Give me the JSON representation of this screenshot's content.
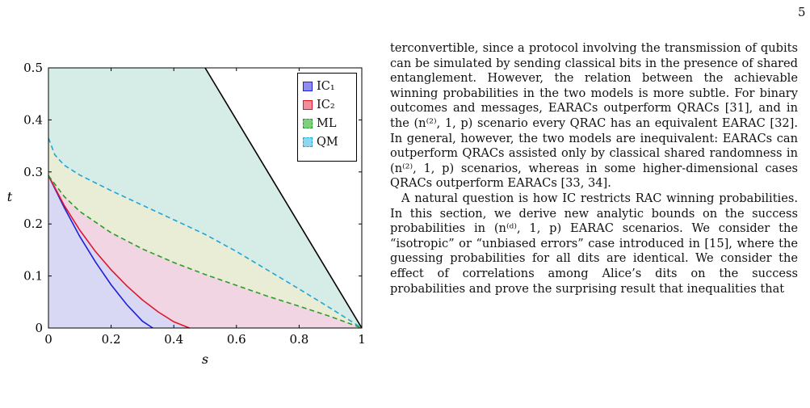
{
  "page_number": "5",
  "colors": {
    "ic1": "#1f1fd6",
    "ic2": "#e0162b",
    "ml": "#2a9d2a",
    "qm": "#1ea6d8",
    "qm_fill": "#d6ece6",
    "ml_fill": "#e9edd5",
    "ic2_fill": "#f2d5e2",
    "ic1_fill": "#d9d8f4"
  },
  "chart_data": {
    "type": "area",
    "xlabel": "s",
    "ylabel": "t",
    "xlim": [
      0,
      1
    ],
    "ylim": [
      0,
      0.5
    ],
    "x_ticks": [
      "0",
      "0.2",
      "0.4",
      "0.6",
      "0.8",
      "1"
    ],
    "y_ticks": [
      "0",
      "0.1",
      "0.2",
      "0.3",
      "0.4",
      "0.5"
    ],
    "legend": "top-right",
    "series": [
      {
        "name": "IC₁",
        "style": "solid",
        "color": "#1f1fd6",
        "x": [
          0,
          0.05,
          0.1,
          0.15,
          0.2,
          0.25,
          0.3,
          0.333
        ],
        "y": [
          0.293,
          0.232,
          0.176,
          0.127,
          0.083,
          0.045,
          0.013,
          0
        ]
      },
      {
        "name": "IC₂",
        "style": "solid",
        "color": "#e0162b",
        "x": [
          0,
          0.05,
          0.1,
          0.15,
          0.2,
          0.25,
          0.3,
          0.35,
          0.4,
          0.45
        ],
        "y": [
          0.293,
          0.236,
          0.188,
          0.147,
          0.112,
          0.081,
          0.054,
          0.031,
          0.012,
          0
        ]
      },
      {
        "name": "ML",
        "style": "dashed",
        "color": "#2a9d2a",
        "x": [
          0,
          0.05,
          0.1,
          0.2,
          0.3,
          0.4,
          0.5,
          0.6,
          0.7,
          0.8,
          0.9,
          1.0
        ],
        "y": [
          0.293,
          0.253,
          0.224,
          0.183,
          0.152,
          0.126,
          0.103,
          0.082,
          0.061,
          0.042,
          0.022,
          0
        ]
      },
      {
        "name": "QM",
        "style": "dashed",
        "color": "#1ea6d8",
        "x": [
          0,
          0.02,
          0.05,
          0.1,
          0.2,
          0.3,
          0.4,
          0.5,
          0.6,
          0.7,
          0.8,
          0.9,
          1.0
        ],
        "y": [
          0.365,
          0.333,
          0.313,
          0.294,
          0.264,
          0.236,
          0.208,
          0.18,
          0.147,
          0.111,
          0.075,
          0.038,
          0
        ]
      },
      {
        "name": "boundary",
        "style": "solid",
        "color": "#000000",
        "x": [
          0.5,
          1.0
        ],
        "y": [
          0.5,
          0
        ]
      }
    ]
  },
  "text": {
    "para1": "terconvertible, since a protocol involving the transmission of qubits can be simulated by sending classical bits in the presence of shared entanglement. However, the relation between the achievable winning probabilities in the two models is more subtle. For binary outcomes and messages, EARACs outperform QRACs [31], and in the (n⁽²⁾, 1, p) scenario every QRAC has an equivalent EARAC [32]. In general, however, the two models are inequivalent: EARACs can outperform QRACs assisted only by classical shared randomness in (n⁽²⁾, 1, p) scenarios, whereas in some higher-dimensional cases QRACs outperform EARACs [33, 34].",
    "para2": "A natural question is how IC restricts RAC winning probabilities. In this section, we derive new analytic bounds on the success probabilities in (n⁽ᵈ⁾, 1, p) EARAC scenarios. We consider the “isotropic” or “unbiased errors” case introduced in [15], where the guessing probabilities for all dits are identical. We consider the effect of correlations among Alice’s dits on the success probabilities and prove the surprising result that inequalities that"
  }
}
